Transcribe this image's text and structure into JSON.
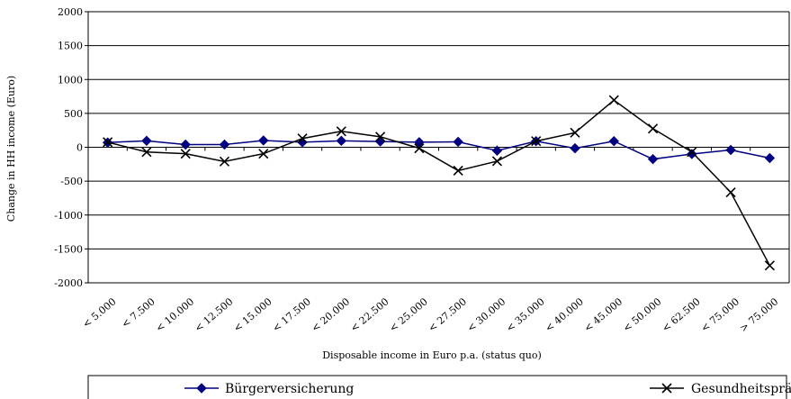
{
  "chart_data": {
    "type": "line",
    "xlabel": "Disposable income in Euro p.a. (status quo)",
    "ylabel": "Change in HH income (Euro)",
    "ylim": [
      -2000,
      2000
    ],
    "yticks": [
      2000,
      1500,
      1000,
      500,
      0,
      -500,
      -1000,
      -1500,
      -2000
    ],
    "grid": "horizontal",
    "legend": "bottom",
    "categories": [
      "< 5.000",
      "< 7.500",
      "< 10.000",
      "< 12.500",
      "< 15.000",
      "< 17.500",
      "< 20.000",
      "< 22.500",
      "< 25.000",
      "< 27.500",
      "< 30.000",
      "< 35.000",
      "< 40.000",
      "< 45.000",
      "< 50.000",
      "< 62.500",
      "< 75.000",
      "> 75.000"
    ],
    "series": [
      {
        "name": "Bürgerversicherung",
        "color": "#000080",
        "marker": "diamond",
        "values": [
          70,
          95,
          40,
          40,
          100,
          75,
          95,
          85,
          75,
          80,
          -50,
          90,
          -15,
          90,
          -175,
          -100,
          -40,
          -160
        ]
      },
      {
        "name": "Gesundheitsprämie",
        "color": "#000000",
        "marker": "x",
        "values": [
          75,
          -70,
          -95,
          -210,
          -95,
          130,
          235,
          155,
          -15,
          -345,
          -205,
          90,
          215,
          695,
          275,
          -70,
          -665,
          -1745
        ]
      }
    ]
  }
}
